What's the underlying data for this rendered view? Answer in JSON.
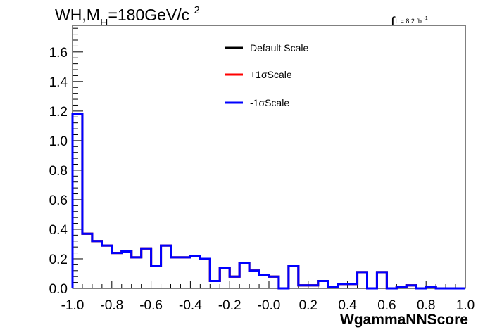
{
  "header": {
    "title_prefix": "WH,M",
    "title_sub": "H",
    "title_rest": "=180GeV/c",
    "title_sup": "2",
    "lumi_text": "L = 8.2 fb",
    "lumi_sup": "-1"
  },
  "chart_data": {
    "type": "line",
    "title": "WH,MH=180GeV/c 2",
    "xlabel": "WgammaNNScore",
    "ylabel": "",
    "xlim": [
      -1.0,
      1.0
    ],
    "ylim": [
      0.0,
      1.78
    ],
    "x_ticks": [
      "-1.0",
      "-0.8",
      "-0.6",
      "-0.4",
      "-0.2",
      "-0.0",
      "0.2",
      "0.4",
      "0.6",
      "0.8",
      "1.0"
    ],
    "x_tick_values": [
      -1.0,
      -0.8,
      -0.6,
      -0.4,
      -0.2,
      0.0,
      0.2,
      0.4,
      0.6,
      0.8,
      1.0
    ],
    "y_ticks": [
      "0.0",
      "0.2",
      "0.4",
      "0.6",
      "0.8",
      "1.0",
      "1.2",
      "1.4",
      "1.6"
    ],
    "y_tick_values": [
      0.0,
      0.2,
      0.4,
      0.6,
      0.8,
      1.0,
      1.2,
      1.4,
      1.6
    ],
    "legend_position": "top-center",
    "histogram_style": "step",
    "bin_edges": [
      -1.0,
      -0.95
    ],
    "bin_width": 0.05,
    "series": [
      {
        "name": "Default Scale",
        "color": "#000000",
        "values": [
          1.18,
          0.37,
          0.32,
          0.29,
          0.24,
          0.25,
          0.21,
          0.27,
          0.15,
          0.29,
          0.21,
          0.21,
          0.22,
          0.2,
          0.05,
          0.14,
          0.08,
          0.17,
          0.12,
          0.09,
          0.08,
          0.0,
          0.15,
          0.02,
          0.02,
          0.05,
          0.01,
          0.03,
          0.03,
          0.11,
          0.0,
          0.11,
          0.0,
          0.01,
          0.02,
          0.0,
          0.01,
          0.0,
          0.0,
          0.0
        ]
      },
      {
        "name": "+1σScale",
        "color": "#ff0000",
        "values": [
          1.18,
          0.37,
          0.32,
          0.29,
          0.24,
          0.25,
          0.21,
          0.27,
          0.15,
          0.29,
          0.21,
          0.21,
          0.22,
          0.2,
          0.05,
          0.14,
          0.08,
          0.17,
          0.12,
          0.09,
          0.08,
          0.0,
          0.15,
          0.02,
          0.02,
          0.05,
          0.01,
          0.03,
          0.03,
          0.11,
          0.0,
          0.11,
          0.0,
          0.01,
          0.02,
          0.0,
          0.01,
          0.0,
          0.0,
          0.0
        ]
      },
      {
        "name": "-1σScale",
        "color": "#0000ff",
        "values": [
          1.18,
          0.37,
          0.32,
          0.29,
          0.24,
          0.25,
          0.21,
          0.27,
          0.15,
          0.29,
          0.21,
          0.21,
          0.22,
          0.2,
          0.05,
          0.14,
          0.08,
          0.17,
          0.12,
          0.09,
          0.08,
          0.0,
          0.15,
          0.02,
          0.02,
          0.05,
          0.01,
          0.03,
          0.03,
          0.11,
          0.0,
          0.11,
          0.0,
          0.01,
          0.02,
          0.0,
          0.01,
          0.0,
          0.0,
          0.0
        ]
      }
    ]
  }
}
